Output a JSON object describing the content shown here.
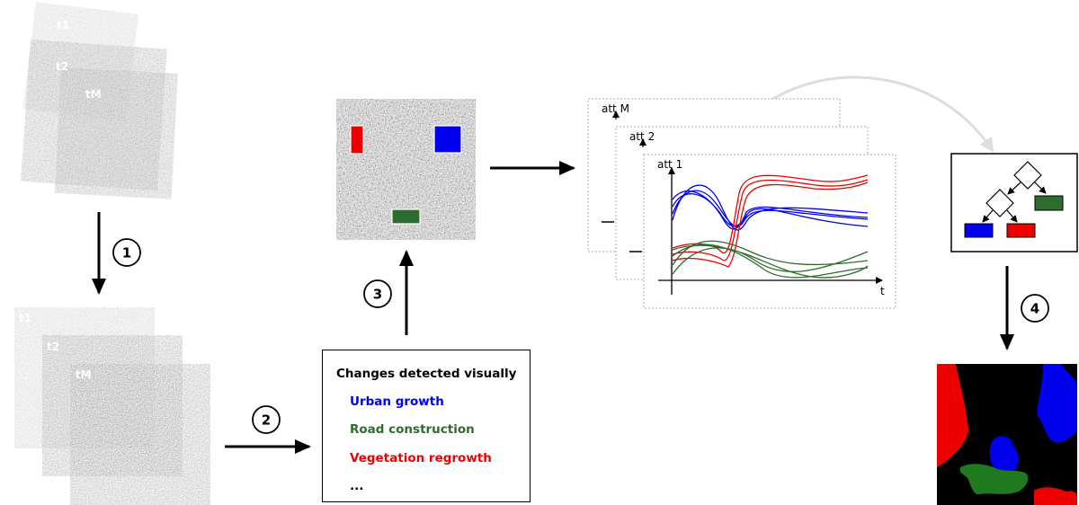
{
  "colors": {
    "urban": "#0000ee",
    "road": "#2e6b2e",
    "vegetation": "#ee0000",
    "step_circle_border": "#000000",
    "card_border": "#aaaaaa",
    "curved_arrow": "#dddddd"
  },
  "image_stack_top": {
    "labels": [
      "t1",
      "t2",
      "tM"
    ]
  },
  "image_stack_bottom": {
    "labels": [
      "t1",
      "t2",
      "tM"
    ]
  },
  "steps": [
    "1",
    "2",
    "3",
    "4"
  ],
  "changes_box": {
    "title": "Changes detected visually",
    "items": [
      {
        "label": "Urban growth",
        "color": "#0000ee"
      },
      {
        "label": "Road construction",
        "color": "#2e6b2e"
      },
      {
        "label": "Vegetation regrowth",
        "color": "#ee0000"
      },
      {
        "label": "...",
        "color": "#000000"
      }
    ]
  },
  "attribute_plots": {
    "card_labels": [
      "att M",
      "att 2",
      "att 1"
    ],
    "x_axis_label": "t"
  }
}
